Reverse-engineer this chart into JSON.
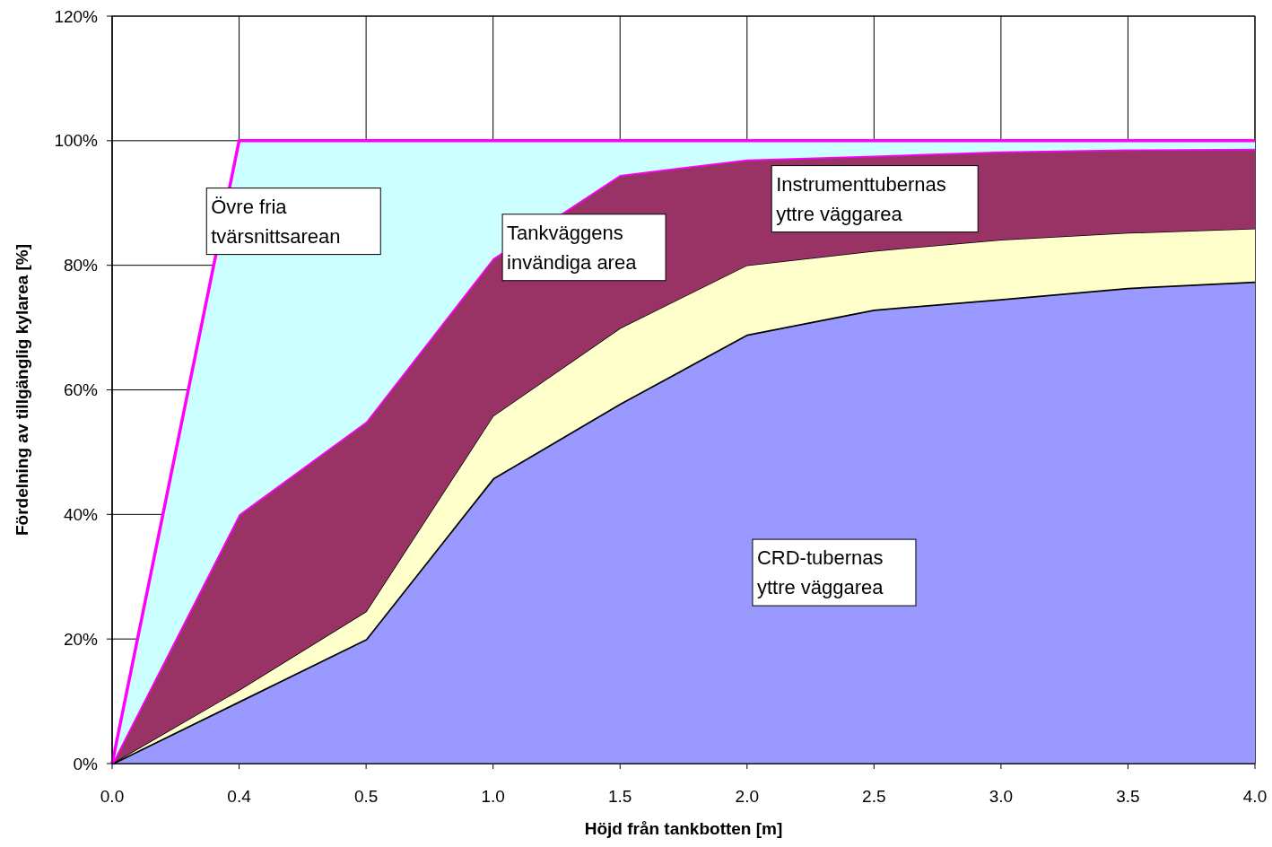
{
  "chart_data": {
    "type": "area",
    "stacked": true,
    "xlabel": "Höjd från tankbotten [m]",
    "ylabel": "Fördelning av tillgänglig kylarea [%]",
    "categories": [
      "0.0",
      "0.4",
      "0.5",
      "1.0",
      "1.5",
      "2.0",
      "2.5",
      "3.0",
      "3.5",
      "4.0"
    ],
    "series": [
      {
        "name": "CRD-tubernas yttre väggarea",
        "color": "#9999ff",
        "values": [
          0,
          10,
          20,
          45.8,
          57.8,
          68.9,
          72.9,
          74.6,
          76.4,
          77.4
        ]
      },
      {
        "name": "Instrumenttubernas yttre väggarea",
        "color": "#ffffcc",
        "values": [
          0,
          1.8,
          4.4,
          10,
          12.1,
          11.1,
          9.4,
          9.5,
          8.8,
          8.5
        ]
      },
      {
        "name": "Tankväggens invändiga area",
        "color": "#993366",
        "values": [
          0,
          28.2,
          30.5,
          25.3,
          24.6,
          17,
          15.3,
          14.2,
          13.4,
          12.8
        ]
      },
      {
        "name": "Övre fria tvärsnittsarean",
        "color": "#ccffff",
        "values": [
          0,
          60,
          45.1,
          18.9,
          5.5,
          3,
          2.4,
          1.7,
          1.4,
          1.3
        ]
      }
    ],
    "ylim": [
      0,
      120
    ],
    "yticks": [
      {
        "value": 0,
        "label": "0%"
      },
      {
        "value": 20,
        "label": "20%"
      },
      {
        "value": 40,
        "label": "40%"
      },
      {
        "value": 60,
        "label": "60%"
      },
      {
        "value": 80,
        "label": "80%"
      },
      {
        "value": 100,
        "label": "100%"
      },
      {
        "value": 120,
        "label": "120%"
      }
    ],
    "grid": true
  }
}
